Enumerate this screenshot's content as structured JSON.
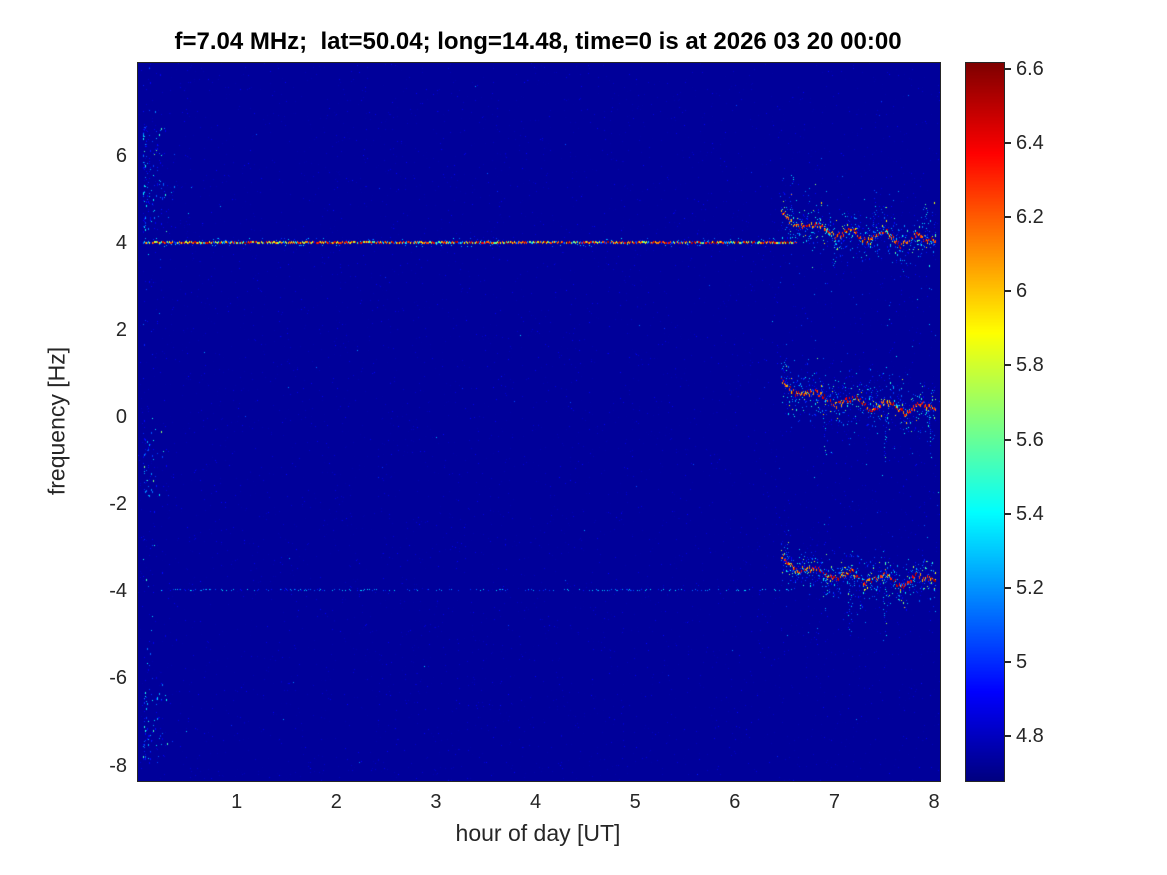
{
  "chart_data": {
    "type": "heatmap",
    "title": "f=7.04 MHz;  lat=50.04; long=14.48, time=0 is at 2026 03 20 00:00",
    "xlabel": "hour of day [UT]",
    "ylabel": "frequency [Hz]",
    "xlim": [
      0,
      8.05
    ],
    "ylim": [
      -8.33,
      8.15
    ],
    "xticks": [
      1,
      2,
      3,
      4,
      5,
      6,
      7,
      8
    ],
    "yticks": [
      6,
      4,
      2,
      0,
      -2,
      -4,
      -6,
      -8
    ],
    "grid": false,
    "legend": "none",
    "colormap": "jet",
    "axis_color": "#262626",
    "title_color": "#000000",
    "colorbar": {
      "position": "right",
      "min": 4.68,
      "max": 6.62,
      "ticks": [
        6.6,
        6.4,
        6.2,
        6,
        5.8,
        5.6,
        5.4,
        5.2,
        5,
        4.8
      ]
    },
    "background_value": 4.73,
    "carrier_lines": [
      {
        "y": 4.05,
        "x_start": 0.05,
        "x_end": 6.6,
        "density": 0.95,
        "value_range": [
          4.9,
          6.6
        ],
        "bright": true,
        "description": "strong narrow multicolored carrier line at +4 Hz spanning 0-6.5 UT"
      },
      {
        "y": -3.95,
        "x_start": 0.1,
        "x_end": 6.55,
        "density": 0.3,
        "value_range": [
          4.9,
          5.4
        ],
        "bright": false,
        "description": "faint blue carrier line at -4 Hz spanning 0-6.5 UT"
      }
    ],
    "bands": [
      {
        "name": "upper-doppler-trace",
        "spread": 0.55,
        "core_value_range": [
          6.0,
          6.6
        ],
        "path": [
          [
            6.45,
            4.75
          ],
          [
            6.6,
            4.4
          ],
          [
            6.8,
            4.45
          ],
          [
            7.0,
            4.15
          ],
          [
            7.15,
            4.35
          ],
          [
            7.3,
            4.05
          ],
          [
            7.5,
            4.3
          ],
          [
            7.65,
            3.95
          ],
          [
            7.8,
            4.2
          ],
          [
            8.0,
            4.05
          ]
        ],
        "spikes": [
          {
            "x": 6.55,
            "to": 5.6
          },
          {
            "x": 7.4,
            "to": 5.3
          },
          {
            "x": 7.9,
            "to": 5.0
          },
          {
            "x": 7.0,
            "to": 3.4
          }
        ]
      },
      {
        "name": "middle-doppler-trace",
        "spread": 0.65,
        "core_value_range": [
          6.0,
          6.6
        ],
        "path": [
          [
            6.45,
            0.9
          ],
          [
            6.6,
            0.55
          ],
          [
            6.8,
            0.6
          ],
          [
            7.0,
            0.3
          ],
          [
            7.2,
            0.5
          ],
          [
            7.35,
            0.15
          ],
          [
            7.5,
            0.4
          ],
          [
            7.7,
            0.1
          ],
          [
            7.85,
            0.35
          ],
          [
            8.0,
            0.2
          ]
        ],
        "spikes": [
          {
            "x": 6.5,
            "to": 1.4
          },
          {
            "x": 6.9,
            "to": -0.9
          },
          {
            "x": 7.35,
            "to": 1.2
          },
          {
            "x": 7.5,
            "to": -1.1
          },
          {
            "x": 7.95,
            "to": -0.9
          }
        ]
      },
      {
        "name": "lower-doppler-trace",
        "spread": 0.5,
        "core_value_range": [
          6.0,
          6.6
        ],
        "path": [
          [
            6.45,
            -3.15
          ],
          [
            6.6,
            -3.5
          ],
          [
            6.8,
            -3.45
          ],
          [
            7.0,
            -3.7
          ],
          [
            7.15,
            -3.5
          ],
          [
            7.3,
            -3.8
          ],
          [
            7.5,
            -3.55
          ],
          [
            7.65,
            -3.9
          ],
          [
            7.8,
            -3.6
          ],
          [
            8.0,
            -3.75
          ]
        ],
        "spikes": [
          {
            "x": 6.5,
            "to": -2.5
          },
          {
            "x": 6.9,
            "to": -4.6
          },
          {
            "x": 7.15,
            "to": -5.1
          },
          {
            "x": 7.5,
            "to": -5.0
          }
        ]
      }
    ],
    "noise": {
      "base_speckle_n": 7000,
      "global_bright_n": 120,
      "left_edge": {
        "x": [
          0.05,
          0.4
        ],
        "clusters": [
          {
            "y": [
              4.3,
              6.7
            ],
            "n": 140
          },
          {
            "y": [
              -7.9,
              -6.2
            ],
            "n": 70
          },
          {
            "y": [
              -1.8,
              -0.3
            ],
            "n": 50
          },
          {
            "y": [
              -8.3,
              8.1
            ],
            "n": 90
          }
        ]
      },
      "right_region": {
        "x": [
          6.2,
          8.05
        ],
        "y": [
          -5.2,
          5.6
        ],
        "n": 80
      }
    }
  }
}
